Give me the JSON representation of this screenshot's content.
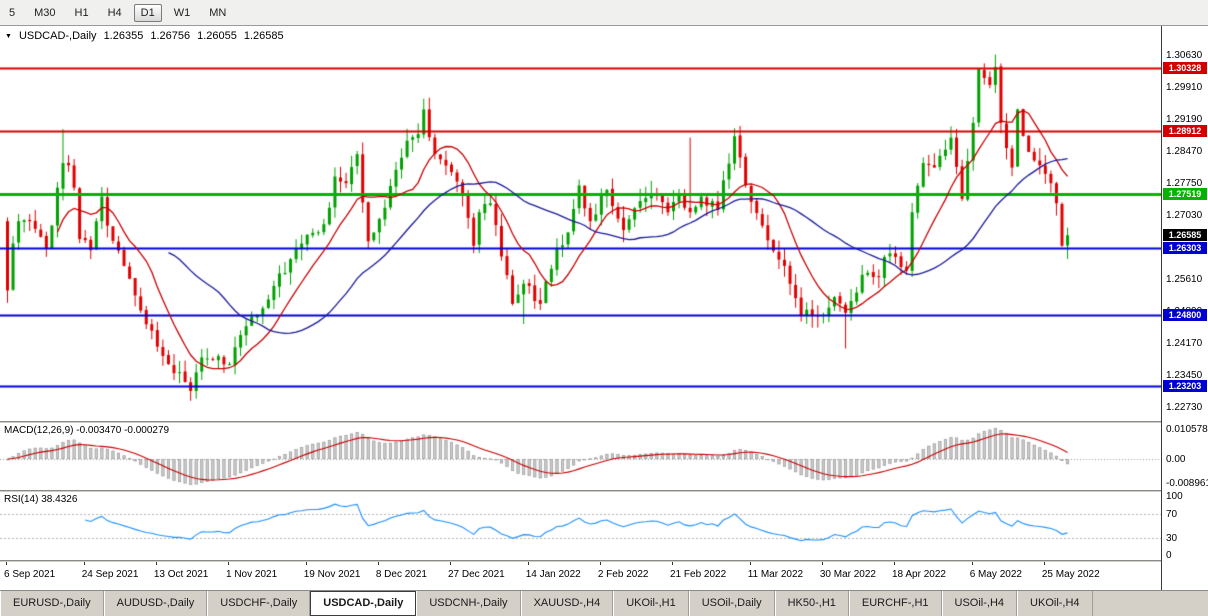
{
  "toolbar": {
    "timeframes": [
      {
        "label": "5",
        "active": false
      },
      {
        "label": "M30",
        "active": false
      },
      {
        "label": "H1",
        "active": false
      },
      {
        "label": "H4",
        "active": false
      },
      {
        "label": "D1",
        "active": true
      },
      {
        "label": "W1",
        "active": false
      },
      {
        "label": "MN",
        "active": false
      }
    ]
  },
  "chart_header": {
    "dropdown_icon": "▼",
    "symbol": "USDCAD-,Daily",
    "open": "1.26355",
    "high": "1.26756",
    "low": "1.26055",
    "close": "1.26585"
  },
  "tabs": [
    {
      "label": "EURUSD-,Daily",
      "active": false
    },
    {
      "label": "AUDUSD-,Daily",
      "active": false
    },
    {
      "label": "USDCHF-,Daily",
      "active": false
    },
    {
      "label": "USDCAD-,Daily",
      "active": true
    },
    {
      "label": "USDCNH-,Daily",
      "active": false
    },
    {
      "label": "XAUUSD-,H4",
      "active": false
    },
    {
      "label": "UKOil-,H1",
      "active": false
    },
    {
      "label": "USOil-,Daily",
      "active": false
    },
    {
      "label": "HK50-,H1",
      "active": false
    },
    {
      "label": "EURCHF-,H1",
      "active": false
    },
    {
      "label": "USOil-,H4",
      "active": false
    },
    {
      "label": "UKOil-,H4",
      "active": false
    }
  ],
  "chart_data": {
    "type": "candlestick",
    "symbol": "USDCAD",
    "timeframe": "Daily",
    "bars": 192,
    "price_axis": {
      "range": [
        1.2245,
        1.31
      ],
      "ticks": [
        "1.30630",
        "1.29910",
        "1.29190",
        "1.28470",
        "1.27750",
        "1.27030",
        "1.25610",
        "1.24890",
        "1.24170",
        "1.23450",
        "1.22730"
      ]
    },
    "current_price": {
      "value": 1.26585,
      "label": "1.26585",
      "color": "#000000"
    },
    "hlines": [
      {
        "price": 1.30328,
        "label": "1.30328",
        "color": "#d40000",
        "width": 2
      },
      {
        "price": 1.28912,
        "label": "1.28912",
        "color": "#d40000",
        "width": 2
      },
      {
        "price": 1.27519,
        "label": "1.27519",
        "color": "#00b400",
        "width": 3
      },
      {
        "price": 1.26303,
        "label": "1.26303",
        "color": "#0000d0",
        "width": 2
      },
      {
        "price": 1.248,
        "label": "1.24800",
        "color": "#0000d0",
        "width": 2
      },
      {
        "price": 1.23203,
        "label": "1.23203",
        "color": "#0000d0",
        "width": 2
      }
    ],
    "candle_colors": {
      "up": "#00a000",
      "down": "#e00000"
    },
    "moving_averages": [
      {
        "period": 10,
        "color": "#c80000"
      },
      {
        "period": 30,
        "color": "#1a1a99"
      }
    ],
    "date_axis": [
      {
        "label": "6 Sep 2021",
        "bar": 0
      },
      {
        "label": "24 Sep 2021",
        "bar": 14
      },
      {
        "label": "13 Oct 2021",
        "bar": 27
      },
      {
        "label": "1 Nov 2021",
        "bar": 40
      },
      {
        "label": "19 Nov 2021",
        "bar": 54
      },
      {
        "label": "8 Dec 2021",
        "bar": 67
      },
      {
        "label": "27 Dec 2021",
        "bar": 80
      },
      {
        "label": "14 Jan 2022",
        "bar": 94
      },
      {
        "label": "2 Feb 2022",
        "bar": 107
      },
      {
        "label": "21 Feb 2022",
        "bar": 120
      },
      {
        "label": "11 Mar 2022",
        "bar": 134
      },
      {
        "label": "30 Mar 2022",
        "bar": 147
      },
      {
        "label": "18 Apr 2022",
        "bar": 160
      },
      {
        "label": "6 May 2022",
        "bar": 174
      },
      {
        "label": "25 May 2022",
        "bar": 187
      }
    ],
    "first_open": 1.269,
    "anchors": [
      [
        0,
        1.2535
      ],
      [
        1,
        1.264
      ],
      [
        2,
        1.269
      ],
      [
        4,
        1.269
      ],
      [
        6,
        1.2655
      ],
      [
        7,
        1.263
      ],
      [
        8,
        1.268
      ],
      [
        9,
        1.2765
      ],
      [
        10,
        1.282
      ],
      [
        11,
        1.2815
      ],
      [
        12,
        1.2765
      ],
      [
        13,
        1.265
      ],
      [
        15,
        1.2625
      ],
      [
        17,
        1.2745
      ],
      [
        18,
        1.268
      ],
      [
        19,
        1.2646
      ],
      [
        21,
        1.259
      ],
      [
        24,
        1.249
      ],
      [
        26,
        1.2445
      ],
      [
        29,
        1.237
      ],
      [
        33,
        1.231
      ],
      [
        35,
        1.2385
      ],
      [
        38,
        1.2388
      ],
      [
        40,
        1.237
      ],
      [
        43,
        1.2455
      ],
      [
        46,
        1.2495
      ],
      [
        48,
        1.2545
      ],
      [
        51,
        1.2605
      ],
      [
        53,
        1.264
      ],
      [
        56,
        1.2665
      ],
      [
        58,
        1.272
      ],
      [
        59,
        1.279
      ],
      [
        61,
        1.2775
      ],
      [
        63,
        1.284
      ],
      [
        65,
        1.2645
      ],
      [
        68,
        1.272
      ],
      [
        70,
        1.2805
      ],
      [
        72,
        1.287
      ],
      [
        74,
        1.2885
      ],
      [
        75,
        1.294
      ],
      [
        77,
        1.284
      ],
      [
        80,
        1.28
      ],
      [
        82,
        1.275
      ],
      [
        84,
        1.2635
      ],
      [
        85,
        1.271
      ],
      [
        87,
        1.273
      ],
      [
        91,
        1.2505
      ],
      [
        93,
        1.255
      ],
      [
        96,
        1.2505
      ],
      [
        99,
        1.263
      ],
      [
        101,
        1.2665
      ],
      [
        103,
        1.277
      ],
      [
        105,
        1.269
      ],
      [
        108,
        1.276
      ],
      [
        111,
        1.267
      ],
      [
        114,
        1.2735
      ],
      [
        117,
        1.275
      ],
      [
        119,
        1.271
      ],
      [
        121,
        1.275
      ],
      [
        123,
        1.271
      ],
      [
        125,
        1.2745
      ],
      [
        128,
        1.2715
      ],
      [
        131,
        1.288
      ],
      [
        133,
        1.277
      ],
      [
        136,
        1.268
      ],
      [
        140,
        1.259
      ],
      [
        143,
        1.248
      ],
      [
        147,
        1.248
      ],
      [
        149,
        1.252
      ],
      [
        151,
        1.2485
      ],
      [
        154,
        1.257
      ],
      [
        157,
        1.2565
      ],
      [
        158,
        1.261
      ],
      [
        160,
        1.261
      ],
      [
        162,
        1.258
      ],
      [
        163,
        1.271
      ],
      [
        165,
        1.282
      ],
      [
        167,
        1.281
      ],
      [
        169,
        1.285
      ],
      [
        170,
        1.2877
      ],
      [
        172,
        1.274
      ],
      [
        174,
        1.291
      ],
      [
        175,
        1.303
      ],
      [
        177,
        1.2995
      ],
      [
        178,
        1.3035
      ],
      [
        179,
        1.291
      ],
      [
        181,
        1.281
      ],
      [
        182,
        1.294
      ],
      [
        184,
        1.2845
      ],
      [
        186,
        1.2815
      ],
      [
        188,
        1.2775
      ],
      [
        189,
        1.273
      ],
      [
        190,
        1.2635
      ],
      [
        191,
        1.26585
      ]
    ],
    "wick_overrides": [
      [
        10,
        "h",
        1.2896
      ],
      [
        33,
        "l",
        1.2288
      ],
      [
        75,
        "h",
        1.2964
      ],
      [
        93,
        "l",
        1.246
      ],
      [
        123,
        "h",
        1.2877
      ],
      [
        151,
        "l",
        1.2405
      ],
      [
        178,
        "h",
        1.3063
      ]
    ],
    "last_bar": {
      "o": 1.26355,
      "h": 1.26756,
      "l": 1.26055,
      "c": 1.26585
    },
    "indicators": {
      "macd": {
        "label": "MACD(12,26,9) -0.003470 -0.000279",
        "params": [
          12,
          26,
          9
        ],
        "value": -0.00347,
        "signal": -0.000279,
        "axis": {
          "max": "0.010578",
          "zero": "0.00",
          "min": "-0.008961"
        },
        "colors": {
          "histogram": "#cccccc",
          "histogram_border": "#9e9e9e",
          "signal": "#c80000"
        }
      },
      "rsi": {
        "label": "RSI(14) 38.4326",
        "period": 14,
        "value": 38.4326,
        "axis": [
          "100",
          "70",
          "30",
          "0"
        ],
        "levels": [
          70,
          30
        ],
        "color": "#1e90ff"
      }
    }
  }
}
